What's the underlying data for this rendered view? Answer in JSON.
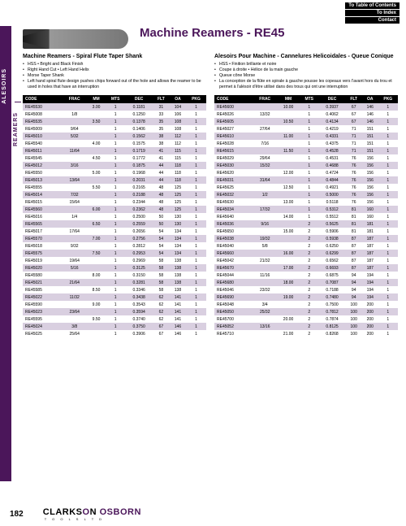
{
  "nav": {
    "toc": "To Table of Contents",
    "index": "To Index",
    "contact": "Contact"
  },
  "side": {
    "l1": "ALESOIRS",
    "l2": "REAMERS"
  },
  "title": "Machine Reamers - RE45",
  "page_num": "182",
  "brand": {
    "p1": "CLARKS",
    "p2": "O",
    "p3": "N",
    "p4": "OSBORN",
    "sub": "T O O L S   L T D"
  },
  "left": {
    "subtitle": "Machine Reamers - Spiral Flute Taper Shank",
    "bullets": [
      "HSS  •  Bright and Black Finish",
      "Right Hand Cut  •  Left Hand Helix",
      "Morse Taper Shank",
      "Left hand spiral flute design pushes chips forward out of the hole and allows the reamer to be used in holes that have an interruption"
    ],
    "headers": [
      "CODE",
      "FRAC",
      "MM",
      "MTS",
      "DEC",
      "FLT",
      "OA",
      "PKG"
    ],
    "rows": [
      [
        "RE45530",
        "",
        "3.00",
        "1",
        "0.1181",
        "31",
        "104",
        "1"
      ],
      [
        "RE45008",
        "1/8",
        "",
        "1",
        "0.1250",
        "33",
        "106",
        "1"
      ],
      [
        "RE45535",
        "",
        "3.50",
        "1",
        "0.1378",
        "35",
        "108",
        "1"
      ],
      [
        "RE45009",
        "9/64",
        "",
        "1",
        "0.1406",
        "35",
        "108",
        "1"
      ],
      [
        "RE45010",
        "5/32",
        "",
        "1",
        "0.1562",
        "38",
        "112",
        "1"
      ],
      [
        "RE45540",
        "",
        "4.00",
        "1",
        "0.1575",
        "38",
        "112",
        "1"
      ],
      [
        "RE45011",
        "11/64",
        "",
        "1",
        "0.1719",
        "41",
        "115",
        "1"
      ],
      [
        "RE45545",
        "",
        "4.50",
        "1",
        "0.1772",
        "41",
        "115",
        "1"
      ],
      [
        "RE45012",
        "3/16",
        "",
        "1",
        "0.1875",
        "44",
        "118",
        "1"
      ],
      [
        "RE45550",
        "",
        "5.00",
        "1",
        "0.1968",
        "44",
        "118",
        "1"
      ],
      [
        "RE45013",
        "13/64",
        "",
        "1",
        "0.2031",
        "44",
        "118",
        "1"
      ],
      [
        "RE45555",
        "",
        "5.50",
        "1",
        "0.2165",
        "48",
        "125",
        "1"
      ],
      [
        "RE45014",
        "7/32",
        "",
        "1",
        "0.2188",
        "48",
        "125",
        "1"
      ],
      [
        "RE45015",
        "15/64",
        "",
        "1",
        "0.2344",
        "48",
        "125",
        "1"
      ],
      [
        "RE45560",
        "",
        "6.00",
        "1",
        "0.2362",
        "48",
        "125",
        "1"
      ],
      [
        "RE45016",
        "1/4",
        "",
        "1",
        "0.2500",
        "50",
        "130",
        "1"
      ],
      [
        "RE45565",
        "",
        "6.50",
        "1",
        "0.2559",
        "50",
        "130",
        "1"
      ],
      [
        "RE45017",
        "17/64",
        "",
        "1",
        "0.2656",
        "54",
        "134",
        "1"
      ],
      [
        "RE45570",
        "",
        "7.00",
        "1",
        "0.2756",
        "54",
        "134",
        "1"
      ],
      [
        "RE45018",
        "9/32",
        "",
        "1",
        "0.2812",
        "54",
        "134",
        "1"
      ],
      [
        "RE45575",
        "",
        "7.50",
        "1",
        "0.2953",
        "54",
        "134",
        "1"
      ],
      [
        "RE45019",
        "19/64",
        "",
        "1",
        "0.2969",
        "58",
        "138",
        "1"
      ],
      [
        "RE45020",
        "5/16",
        "",
        "1",
        "0.3125",
        "58",
        "138",
        "1"
      ],
      [
        "RE45580",
        "",
        "8.00",
        "1",
        "0.3150",
        "58",
        "138",
        "1"
      ],
      [
        "RE45021",
        "21/64",
        "",
        "1",
        "0.3281",
        "58",
        "138",
        "1"
      ],
      [
        "RE45585",
        "",
        "8.50",
        "1",
        "0.3346",
        "58",
        "138",
        "1"
      ],
      [
        "RE45022",
        "11/32",
        "",
        "1",
        "0.3438",
        "62",
        "141",
        "1"
      ],
      [
        "RE45590",
        "",
        "9.00",
        "1",
        "0.3543",
        "62",
        "141",
        "1"
      ],
      [
        "RE45023",
        "23/64",
        "",
        "1",
        "0.3594",
        "62",
        "141",
        "1"
      ],
      [
        "RE45595",
        "",
        "9.50",
        "1",
        "0.3740",
        "62",
        "141",
        "1"
      ],
      [
        "RE45024",
        "3/8",
        "",
        "1",
        "0.3750",
        "67",
        "146",
        "1"
      ],
      [
        "RE45025",
        "25/64",
        "",
        "1",
        "0.3906",
        "67",
        "146",
        "1"
      ]
    ]
  },
  "right": {
    "subtitle": "Alesoirs Pour Machine - Cannelures Helicoidales - Queue Conique",
    "bullets": [
      "HSS  •  Finition brillante et noire",
      "Coupe à droite  •  Hélice de la main gauche",
      "Queue cône Morse",
      "La conception de la flûte en spirale à gauche pousse les copeaux vers l'avant hors du trou et permet à l'alésoir d'être utilisé dans des trous qui ont une interruption"
    ],
    "headers": [
      "CODE",
      "FRAC",
      "MM",
      "MTS",
      "DEC",
      "FLT",
      "OA",
      "PKG"
    ],
    "rows": [
      [
        "RE45600",
        "",
        "10.00",
        "1",
        "0.3937",
        "67",
        "146",
        "1"
      ],
      [
        "RE45026",
        "13/32",
        "",
        "1",
        "0.4062",
        "67",
        "146",
        "1"
      ],
      [
        "RE45605",
        "",
        "10.50",
        "1",
        "0.4134",
        "67",
        "146",
        "1"
      ],
      [
        "RE45027",
        "27/64",
        "",
        "1",
        "0.4219",
        "71",
        "151",
        "1"
      ],
      [
        "RE45610",
        "",
        "11.00",
        "1",
        "0.4331",
        "71",
        "151",
        "1"
      ],
      [
        "RE45028",
        "7/16",
        "",
        "1",
        "0.4375",
        "71",
        "151",
        "1"
      ],
      [
        "RE45615",
        "",
        "11.50",
        "1",
        "0.4528",
        "71",
        "151",
        "1"
      ],
      [
        "RE45029",
        "29/64",
        "",
        "1",
        "0.4531",
        "76",
        "156",
        "1"
      ],
      [
        "RE45030",
        "15/32",
        "",
        "1",
        "0.4688",
        "76",
        "156",
        "1"
      ],
      [
        "RE45620",
        "",
        "12.00",
        "1",
        "0.4724",
        "76",
        "156",
        "1"
      ],
      [
        "RE45031",
        "31/64",
        "",
        "1",
        "0.4844",
        "76",
        "156",
        "1"
      ],
      [
        "RE45625",
        "",
        "12.50",
        "1",
        "0.4921",
        "76",
        "156",
        "1"
      ],
      [
        "RE45032",
        "1/2",
        "",
        "1",
        "0.5000",
        "76",
        "156",
        "1"
      ],
      [
        "RE45630",
        "",
        "13.00",
        "1",
        "0.5118",
        "76",
        "156",
        "1"
      ],
      [
        "RE45034",
        "17/32",
        "",
        "1",
        "0.5312",
        "81",
        "160",
        "1"
      ],
      [
        "RE45640",
        "",
        "14.00",
        "1",
        "0.5512",
        "81",
        "160",
        "1"
      ],
      [
        "RE45036",
        "9/16",
        "",
        "2",
        "0.5625",
        "81",
        "181",
        "1"
      ],
      [
        "RE45650",
        "",
        "15.00",
        "2",
        "0.5906",
        "81",
        "181",
        "1"
      ],
      [
        "RE45038",
        "19/32",
        "",
        "2",
        "0.5938",
        "87",
        "187",
        "1"
      ],
      [
        "RE45040",
        "5/8",
        "",
        "2",
        "0.6250",
        "87",
        "187",
        "1"
      ],
      [
        "RE45660",
        "",
        "16.00",
        "2",
        "0.6299",
        "87",
        "187",
        "1"
      ],
      [
        "RE45042",
        "21/32",
        "",
        "2",
        "0.6562",
        "87",
        "187",
        "1"
      ],
      [
        "RE45670",
        "",
        "17.00",
        "2",
        "0.6693",
        "87",
        "187",
        "1"
      ],
      [
        "RE45044",
        "11/16",
        "",
        "2",
        "0.6875",
        "94",
        "194",
        "1"
      ],
      [
        "RE45680",
        "",
        "18.00",
        "2",
        "0.7087",
        "94",
        "194",
        "1"
      ],
      [
        "RE45046",
        "23/32",
        "",
        "2",
        "0.7188",
        "94",
        "194",
        "1"
      ],
      [
        "RE45690",
        "",
        "19.00",
        "2",
        "0.7480",
        "94",
        "194",
        "1"
      ],
      [
        "RE45048",
        "3/4",
        "",
        "2",
        "0.7500",
        "100",
        "200",
        "1"
      ],
      [
        "RE45050",
        "25/32",
        "",
        "2",
        "0.7812",
        "100",
        "200",
        "1"
      ],
      [
        "RE45700",
        "",
        "20.00",
        "2",
        "0.7874",
        "100",
        "200",
        "1"
      ],
      [
        "RE45052",
        "13/16",
        "",
        "2",
        "0.8125",
        "100",
        "200",
        "1"
      ],
      [
        "RE45710",
        "",
        "21.00",
        "2",
        "0.8268",
        "100",
        "200",
        "1"
      ]
    ]
  }
}
